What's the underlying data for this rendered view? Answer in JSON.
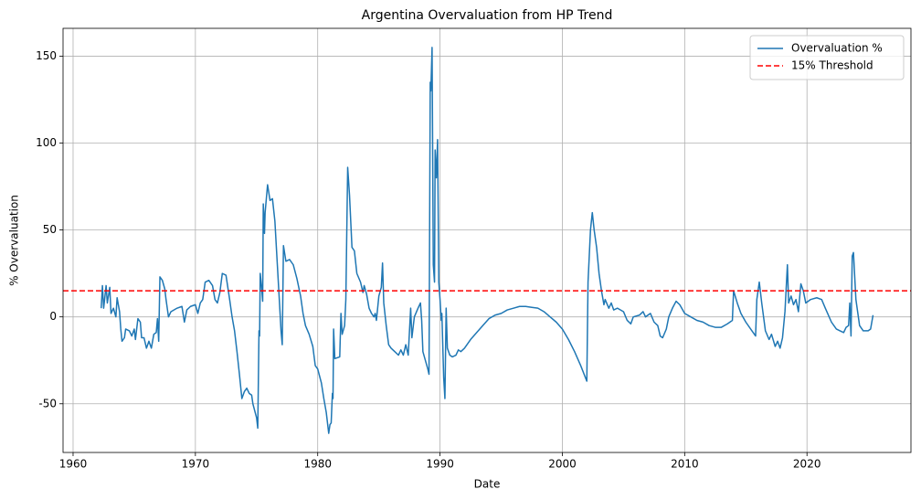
{
  "chart_data": {
    "type": "line",
    "title": "Argentina Overvaluation from HP Trend",
    "xlabel": "Date",
    "ylabel": "% Overvaluation",
    "x": [
      1962.3,
      1962.4,
      1962.5,
      1962.7,
      1962.8,
      1963.0,
      1963.1,
      1963.3,
      1963.5,
      1963.6,
      1963.8,
      1963.9,
      1964.0,
      1964.2,
      1964.3,
      1964.6,
      1964.8,
      1965.0,
      1965.1,
      1965.3,
      1965.5,
      1965.6,
      1965.8,
      1966.0,
      1966.2,
      1966.4,
      1966.6,
      1966.8,
      1966.9,
      1967.0,
      1967.1,
      1967.3,
      1967.5,
      1967.6,
      1967.8,
      1968.0,
      1968.5,
      1968.9,
      1969.1,
      1969.3,
      1969.6,
      1970.0,
      1970.2,
      1970.4,
      1970.6,
      1970.8,
      1971.1,
      1971.4,
      1971.6,
      1971.8,
      1972.0,
      1972.2,
      1972.5,
      1972.8,
      1973.0,
      1973.2,
      1973.4,
      1973.6,
      1973.8,
      1974.0,
      1974.2,
      1974.4,
      1974.6,
      1974.7,
      1975.0,
      1975.1,
      1975.2,
      1975.25,
      1975.3,
      1975.4,
      1975.5,
      1975.55,
      1975.65,
      1975.7,
      1975.9,
      1976.1,
      1976.3,
      1976.5,
      1976.7,
      1976.9,
      1977.0,
      1977.1,
      1977.2,
      1977.4,
      1977.7,
      1978.0,
      1978.3,
      1978.6,
      1978.8,
      1979.0,
      1979.3,
      1979.6,
      1979.8,
      1980.0,
      1980.3,
      1980.5,
      1980.7,
      1980.9,
      1981.0,
      1981.1,
      1981.2,
      1981.25,
      1981.3,
      1981.4,
      1981.8,
      1981.9,
      1982.0,
      1982.2,
      1982.3,
      1982.45,
      1982.6,
      1982.8,
      1983.0,
      1983.2,
      1983.5,
      1983.7,
      1983.8,
      1984.0,
      1984.2,
      1984.4,
      1984.6,
      1984.7,
      1984.8,
      1985.0,
      1985.2,
      1985.3,
      1985.4,
      1985.6,
      1985.8,
      1986.0,
      1986.3,
      1986.6,
      1986.8,
      1987.0,
      1987.2,
      1987.4,
      1987.6,
      1987.7,
      1987.9,
      1988.2,
      1988.4,
      1988.5,
      1988.6,
      1988.8,
      1989.0,
      1989.1,
      1989.2,
      1989.25,
      1989.35,
      1989.45,
      1989.55,
      1989.6,
      1989.7,
      1989.8,
      1989.9,
      1990.0,
      1990.1,
      1990.15,
      1990.3,
      1990.4,
      1990.5,
      1990.6,
      1990.8,
      1991.0,
      1991.3,
      1991.5,
      1991.7,
      1992.0,
      1992.5,
      1993.0,
      1993.5,
      1994.0,
      1994.5,
      1995.0,
      1995.5,
      1996.0,
      1996.5,
      1997.0,
      1997.5,
      1998.0,
      1998.5,
      1999.0,
      1999.5,
      2000.0,
      2000.5,
      2001.0,
      2001.5,
      2002.0,
      2002.1,
      2002.3,
      2002.45,
      2002.6,
      2002.8,
      2003.0,
      2003.2,
      2003.4,
      2003.5,
      2003.8,
      2004.0,
      2004.2,
      2004.5,
      2005.0,
      2005.3,
      2005.6,
      2005.8,
      2006.3,
      2006.6,
      2006.8,
      2007.2,
      2007.5,
      2007.8,
      2008.0,
      2008.2,
      2008.5,
      2008.7,
      2009.0,
      2009.3,
      2009.6,
      2010.0,
      2010.5,
      2011.0,
      2011.5,
      2012.0,
      2012.5,
      2013.0,
      2013.5,
      2013.9,
      2014.0,
      2014.3,
      2014.6,
      2015.0,
      2015.5,
      2015.8,
      2015.9,
      2016.1,
      2016.3,
      2016.6,
      2016.9,
      2017.1,
      2017.4,
      2017.6,
      2017.8,
      2018.0,
      2018.2,
      2018.4,
      2018.5,
      2018.7,
      2018.9,
      2019.1,
      2019.3,
      2019.5,
      2019.7,
      2019.9,
      2020.3,
      2020.8,
      2021.2,
      2021.5,
      2022.0,
      2022.4,
      2022.7,
      2023.0,
      2023.2,
      2023.4,
      2023.5,
      2023.6,
      2023.7,
      2023.8,
      2024.0,
      2024.3,
      2024.6,
      2025.0,
      2025.2,
      2025.4
    ],
    "series": [
      {
        "name": "Overvaluation %",
        "color": "#1f77b4",
        "values": [
          5,
          18,
          5,
          18,
          8,
          17,
          2,
          5,
          0,
          11,
          3,
          -7,
          -14,
          -12,
          -7,
          -8,
          -11,
          -7,
          -13,
          -1,
          -3,
          -12,
          -12,
          -18,
          -14,
          -18,
          -10,
          -9,
          -1,
          -14,
          23,
          21,
          16,
          10,
          0,
          3,
          5,
          6,
          -3,
          4,
          6,
          7,
          2,
          8,
          10,
          20,
          21,
          18,
          10,
          8,
          14,
          25,
          24,
          10,
          0,
          -8,
          -20,
          -33,
          -47,
          -43,
          -41,
          -44,
          -45,
          -50,
          -58,
          -64,
          -8,
          -11,
          25,
          18,
          9,
          65,
          48,
          60,
          76,
          67,
          68,
          55,
          30,
          5,
          -8,
          -16,
          41,
          32,
          33,
          30,
          22,
          12,
          2,
          -5,
          -10,
          -17,
          -28,
          -30,
          -38,
          -47,
          -55,
          -67,
          -62,
          -61,
          -44,
          -47,
          -7,
          -24,
          -23,
          2,
          -10,
          -5,
          10,
          86,
          70,
          40,
          38,
          25,
          20,
          14,
          18,
          13,
          5,
          2,
          0,
          2,
          -2,
          12,
          17,
          31,
          8,
          -5,
          -16,
          -18,
          -20,
          -22,
          -19,
          -22,
          -16,
          -22,
          5,
          -12,
          0,
          5,
          8,
          -2,
          -20,
          -25,
          -30,
          -33,
          135,
          130,
          155,
          30,
          20,
          96,
          80,
          102,
          20,
          10,
          -2,
          2,
          -35,
          -47,
          5,
          -18,
          -22,
          -23,
          -22,
          -19,
          -20,
          -18,
          -13,
          -9,
          -5,
          -1,
          1,
          2,
          4,
          5,
          6,
          6,
          5.5,
          5,
          3,
          0,
          -3,
          -7,
          -13,
          -20,
          -28,
          -37,
          20,
          50,
          60,
          50,
          40,
          25,
          15,
          7,
          10,
          5,
          8,
          4,
          5,
          3,
          -2,
          -4,
          0,
          1,
          3,
          0,
          2,
          -3,
          -5,
          -11,
          -12,
          -7,
          0,
          5,
          9,
          7,
          2,
          0,
          -2,
          -3,
          -5,
          -6,
          -6,
          -4,
          -2,
          15,
          8,
          2,
          -3,
          -8,
          -11,
          10,
          20,
          8,
          -8,
          -13,
          -10,
          -17,
          -14,
          -18,
          -12,
          3,
          30,
          8,
          12,
          7,
          10,
          3,
          19,
          15,
          8,
          10,
          11,
          10,
          5,
          -3,
          -7,
          -8,
          -9,
          -6,
          -5,
          8,
          -11,
          35,
          37,
          10,
          -5,
          -8,
          -8,
          -7,
          1
        ]
      }
    ],
    "hlines": [
      {
        "name": "15% Threshold",
        "value": 15,
        "color": "#ff0000",
        "linestyle": "dashed"
      }
    ],
    "xlim": [
      1959.18,
      2028.5
    ],
    "ylim": [
      -78,
      166
    ],
    "xticks": [
      1960,
      1970,
      1980,
      1990,
      2000,
      2010,
      2020
    ],
    "yticks": [
      -50,
      0,
      50,
      100,
      150
    ],
    "grid": true,
    "legend": "upper right"
  }
}
